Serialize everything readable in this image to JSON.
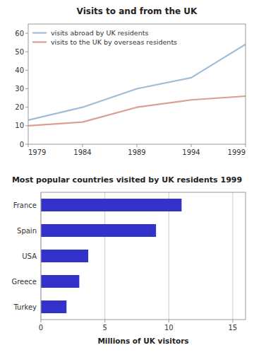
{
  "chart_data": [
    {
      "type": "line",
      "title": "Visits to and from the UK",
      "x": [
        1979,
        1984,
        1989,
        1994,
        1999
      ],
      "series": [
        {
          "name": "visits  abroad by UK residents",
          "color": "#a0bcd8",
          "values": [
            13,
            20,
            30,
            36,
            54
          ]
        },
        {
          "name": "visits to the UK by overseas residents",
          "color": "#d8a090",
          "values": [
            10,
            12,
            20,
            24,
            26
          ]
        }
      ],
      "xlim": [
        1979,
        1999
      ],
      "xticks": [
        1979,
        1984,
        1989,
        1994,
        1999
      ],
      "ylim": [
        0,
        65
      ],
      "yticks": [
        0,
        10,
        20,
        30,
        40,
        50,
        60
      ],
      "legend": "upper left",
      "grid": false
    },
    {
      "type": "bar",
      "orientation": "horizontal",
      "title": "Most popular countries visited by UK residents 1999",
      "categories": [
        "France",
        "Spain",
        "USA",
        "Greece",
        "Turkey"
      ],
      "values": [
        11,
        9,
        3.7,
        3,
        2
      ],
      "color": "#3333cc",
      "xlabel": "Millions of UK visitors",
      "xlim": [
        0,
        16
      ],
      "xticks": [
        0,
        5,
        10,
        15
      ],
      "grid": true
    }
  ]
}
